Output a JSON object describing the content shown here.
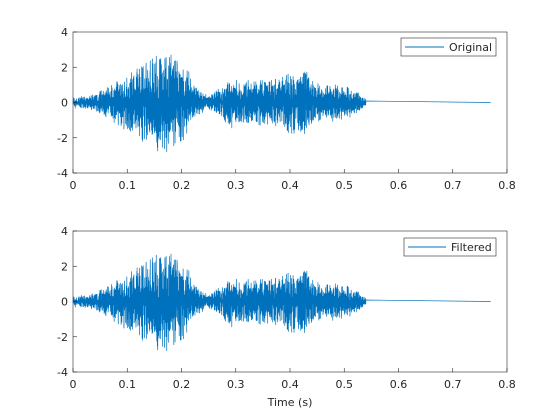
{
  "chart_data": [
    {
      "type": "line",
      "title": "",
      "xlabel": "",
      "ylabel": "",
      "xlim": [
        0,
        0.8
      ],
      "ylim": [
        -4,
        4
      ],
      "xticks": [
        "0",
        "0.1",
        "0.2",
        "0.3",
        "0.4",
        "0.5",
        "0.6",
        "0.7",
        "0.8"
      ],
      "yticks": [
        "4",
        "2",
        "0",
        "-2",
        "-4"
      ],
      "grid": false,
      "legend_position": "top-right",
      "series": [
        {
          "name": "Original",
          "color": "#0072BD",
          "duration": 0.77,
          "signal_end": 0.54,
          "envelope": [
            [
              0.0,
              0.3
            ],
            [
              0.03,
              0.35
            ],
            [
              0.06,
              0.8
            ],
            [
              0.09,
              1.4
            ],
            [
              0.12,
              2.0
            ],
            [
              0.15,
              2.6
            ],
            [
              0.17,
              2.9
            ],
            [
              0.19,
              2.5
            ],
            [
              0.21,
              2.0
            ],
            [
              0.23,
              0.7
            ],
            [
              0.25,
              0.35
            ],
            [
              0.27,
              0.8
            ],
            [
              0.29,
              1.4
            ],
            [
              0.32,
              1.2
            ],
            [
              0.36,
              1.3
            ],
            [
              0.4,
              1.8
            ],
            [
              0.43,
              1.7
            ],
            [
              0.46,
              0.9
            ],
            [
              0.49,
              1.1
            ],
            [
              0.52,
              0.7
            ],
            [
              0.54,
              0.2
            ]
          ],
          "y_min": -2.8,
          "y_max": 3.1
        }
      ]
    },
    {
      "type": "line",
      "title": "",
      "xlabel": "Time (s)",
      "ylabel": "",
      "xlim": [
        0,
        0.8
      ],
      "ylim": [
        -4,
        4
      ],
      "xticks": [
        "0",
        "0.1",
        "0.2",
        "0.3",
        "0.4",
        "0.5",
        "0.6",
        "0.7",
        "0.8"
      ],
      "yticks": [
        "4",
        "2",
        "0",
        "-2",
        "-4"
      ],
      "grid": false,
      "legend_position": "top-right",
      "series": [
        {
          "name": "Filtered",
          "color": "#0072BD",
          "duration": 0.77,
          "signal_end": 0.54,
          "envelope": [
            [
              0.0,
              0.3
            ],
            [
              0.03,
              0.35
            ],
            [
              0.06,
              0.8
            ],
            [
              0.09,
              1.4
            ],
            [
              0.12,
              2.0
            ],
            [
              0.15,
              2.6
            ],
            [
              0.17,
              2.9
            ],
            [
              0.19,
              2.5
            ],
            [
              0.21,
              2.0
            ],
            [
              0.23,
              0.7
            ],
            [
              0.25,
              0.35
            ],
            [
              0.27,
              0.8
            ],
            [
              0.29,
              1.4
            ],
            [
              0.32,
              1.2
            ],
            [
              0.36,
              1.3
            ],
            [
              0.4,
              1.8
            ],
            [
              0.43,
              1.7
            ],
            [
              0.46,
              0.9
            ],
            [
              0.49,
              1.1
            ],
            [
              0.52,
              0.7
            ],
            [
              0.54,
              0.2
            ]
          ],
          "y_min": -2.8,
          "y_max": 3.1
        }
      ]
    }
  ]
}
